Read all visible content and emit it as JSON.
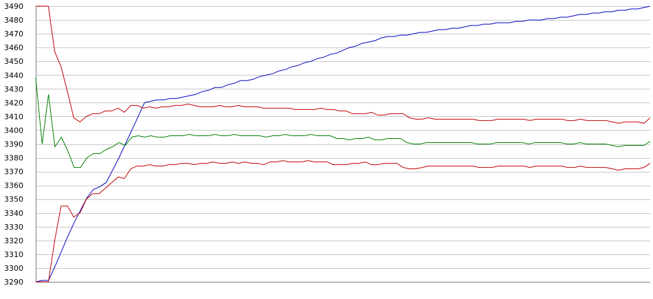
{
  "chart_data": {
    "type": "line",
    "title": "",
    "xlabel": "",
    "ylabel": "",
    "ylim": [
      3290,
      3490
    ],
    "yticks": [
      3290,
      3300,
      3310,
      3320,
      3330,
      3340,
      3350,
      3360,
      3370,
      3380,
      3390,
      3400,
      3410,
      3420,
      3430,
      3440,
      3450,
      3460,
      3470,
      3480,
      3490
    ],
    "grid": true,
    "legend": "none",
    "series": [
      {
        "color": "#0000c0",
        "values": [
          3290,
          3291,
          3291,
          3301,
          3312,
          3323,
          3333,
          3342,
          3351,
          3357,
          3359,
          3362,
          3371,
          3380,
          3390,
          3400,
          3410,
          3420,
          3421,
          3422,
          3422,
          3423,
          3423,
          3424,
          3425,
          3426,
          3428,
          3429,
          3431,
          3431,
          3433,
          3434,
          3436,
          3436,
          3437,
          3439,
          3440,
          3441,
          3443,
          3444,
          3446,
          3447,
          3449,
          3450,
          3452,
          3453,
          3455,
          3456,
          3458,
          3460,
          3461,
          3463,
          3464,
          3465,
          3467,
          3468,
          3468,
          3469,
          3469,
          3470,
          3471,
          3471,
          3472,
          3473,
          3473,
          3474,
          3474,
          3475,
          3476,
          3476,
          3477,
          3477,
          3478,
          3478,
          3478,
          3479,
          3479,
          3480,
          3480,
          3480,
          3481,
          3481,
          3482,
          3482,
          3483,
          3484,
          3484,
          3485,
          3485,
          3486,
          3486,
          3487,
          3487,
          3488,
          3488,
          3489,
          3490
        ]
      },
      {
        "color": "#c00000",
        "values": [
          3490,
          3490,
          3490,
          3457,
          3446,
          3428,
          3409,
          3406,
          3410,
          3412,
          3412,
          3414,
          3414,
          3416,
          3413,
          3418,
          3418,
          3416,
          3417,
          3416,
          3417,
          3417,
          3418,
          3418,
          3419,
          3418,
          3417,
          3417,
          3417,
          3418,
          3417,
          3417,
          3418,
          3417,
          3417,
          3417,
          3416,
          3416,
          3416,
          3416,
          3416,
          3415,
          3415,
          3415,
          3415,
          3416,
          3415,
          3415,
          3414,
          3414,
          3412,
          3412,
          3412,
          3413,
          3411,
          3411,
          3412,
          3412,
          3412,
          3409,
          3408,
          3408,
          3409,
          3408,
          3408,
          3408,
          3408,
          3408,
          3408,
          3408,
          3407,
          3407,
          3407,
          3408,
          3408,
          3408,
          3408,
          3408,
          3407,
          3408,
          3408,
          3408,
          3408,
          3408,
          3407,
          3407,
          3408,
          3407,
          3407,
          3407,
          3407,
          3406,
          3405,
          3406,
          3406,
          3406,
          3405,
          3409
        ]
      },
      {
        "color": "#008000",
        "values": [
          3438,
          3390,
          3426,
          3388,
          3395,
          3385,
          3373,
          3373,
          3380,
          3383,
          3383,
          3386,
          3388,
          3391,
          3389,
          3395,
          3396,
          3395,
          3396,
          3395,
          3395,
          3396,
          3396,
          3396,
          3397,
          3396,
          3396,
          3396,
          3397,
          3396,
          3396,
          3397,
          3396,
          3396,
          3396,
          3396,
          3395,
          3396,
          3396,
          3397,
          3396,
          3396,
          3396,
          3397,
          3396,
          3396,
          3396,
          3394,
          3394,
          3393,
          3394,
          3394,
          3395,
          3393,
          3393,
          3394,
          3394,
          3394,
          3391,
          3390,
          3390,
          3391,
          3391,
          3391,
          3391,
          3391,
          3391,
          3391,
          3391,
          3390,
          3390,
          3390,
          3391,
          3391,
          3391,
          3391,
          3391,
          3390,
          3391,
          3391,
          3391,
          3391,
          3391,
          3390,
          3390,
          3391,
          3390,
          3390,
          3390,
          3390,
          3389,
          3388,
          3389,
          3389,
          3389,
          3389,
          3392
        ]
      },
      {
        "color": "#c00000",
        "values": [
          3290,
          3290,
          3290,
          3320,
          3345,
          3345,
          3337,
          3340,
          3350,
          3354,
          3354,
          3358,
          3362,
          3366,
          3365,
          3372,
          3374,
          3374,
          3375,
          3374,
          3374,
          3375,
          3375,
          3376,
          3376,
          3375,
          3376,
          3376,
          3377,
          3376,
          3376,
          3377,
          3376,
          3377,
          3376,
          3376,
          3375,
          3377,
          3377,
          3378,
          3377,
          3377,
          3377,
          3378,
          3377,
          3377,
          3377,
          3375,
          3375,
          3375,
          3376,
          3376,
          3377,
          3375,
          3375,
          3376,
          3376,
          3376,
          3373,
          3372,
          3372,
          3373,
          3374,
          3374,
          3374,
          3374,
          3374,
          3374,
          3374,
          3374,
          3373,
          3373,
          3373,
          3374,
          3374,
          3374,
          3374,
          3374,
          3373,
          3374,
          3374,
          3374,
          3374,
          3374,
          3373,
          3373,
          3374,
          3373,
          3373,
          3373,
          3373,
          3372,
          3371,
          3372,
          3372,
          3372,
          3373,
          3376
        ]
      }
    ]
  }
}
